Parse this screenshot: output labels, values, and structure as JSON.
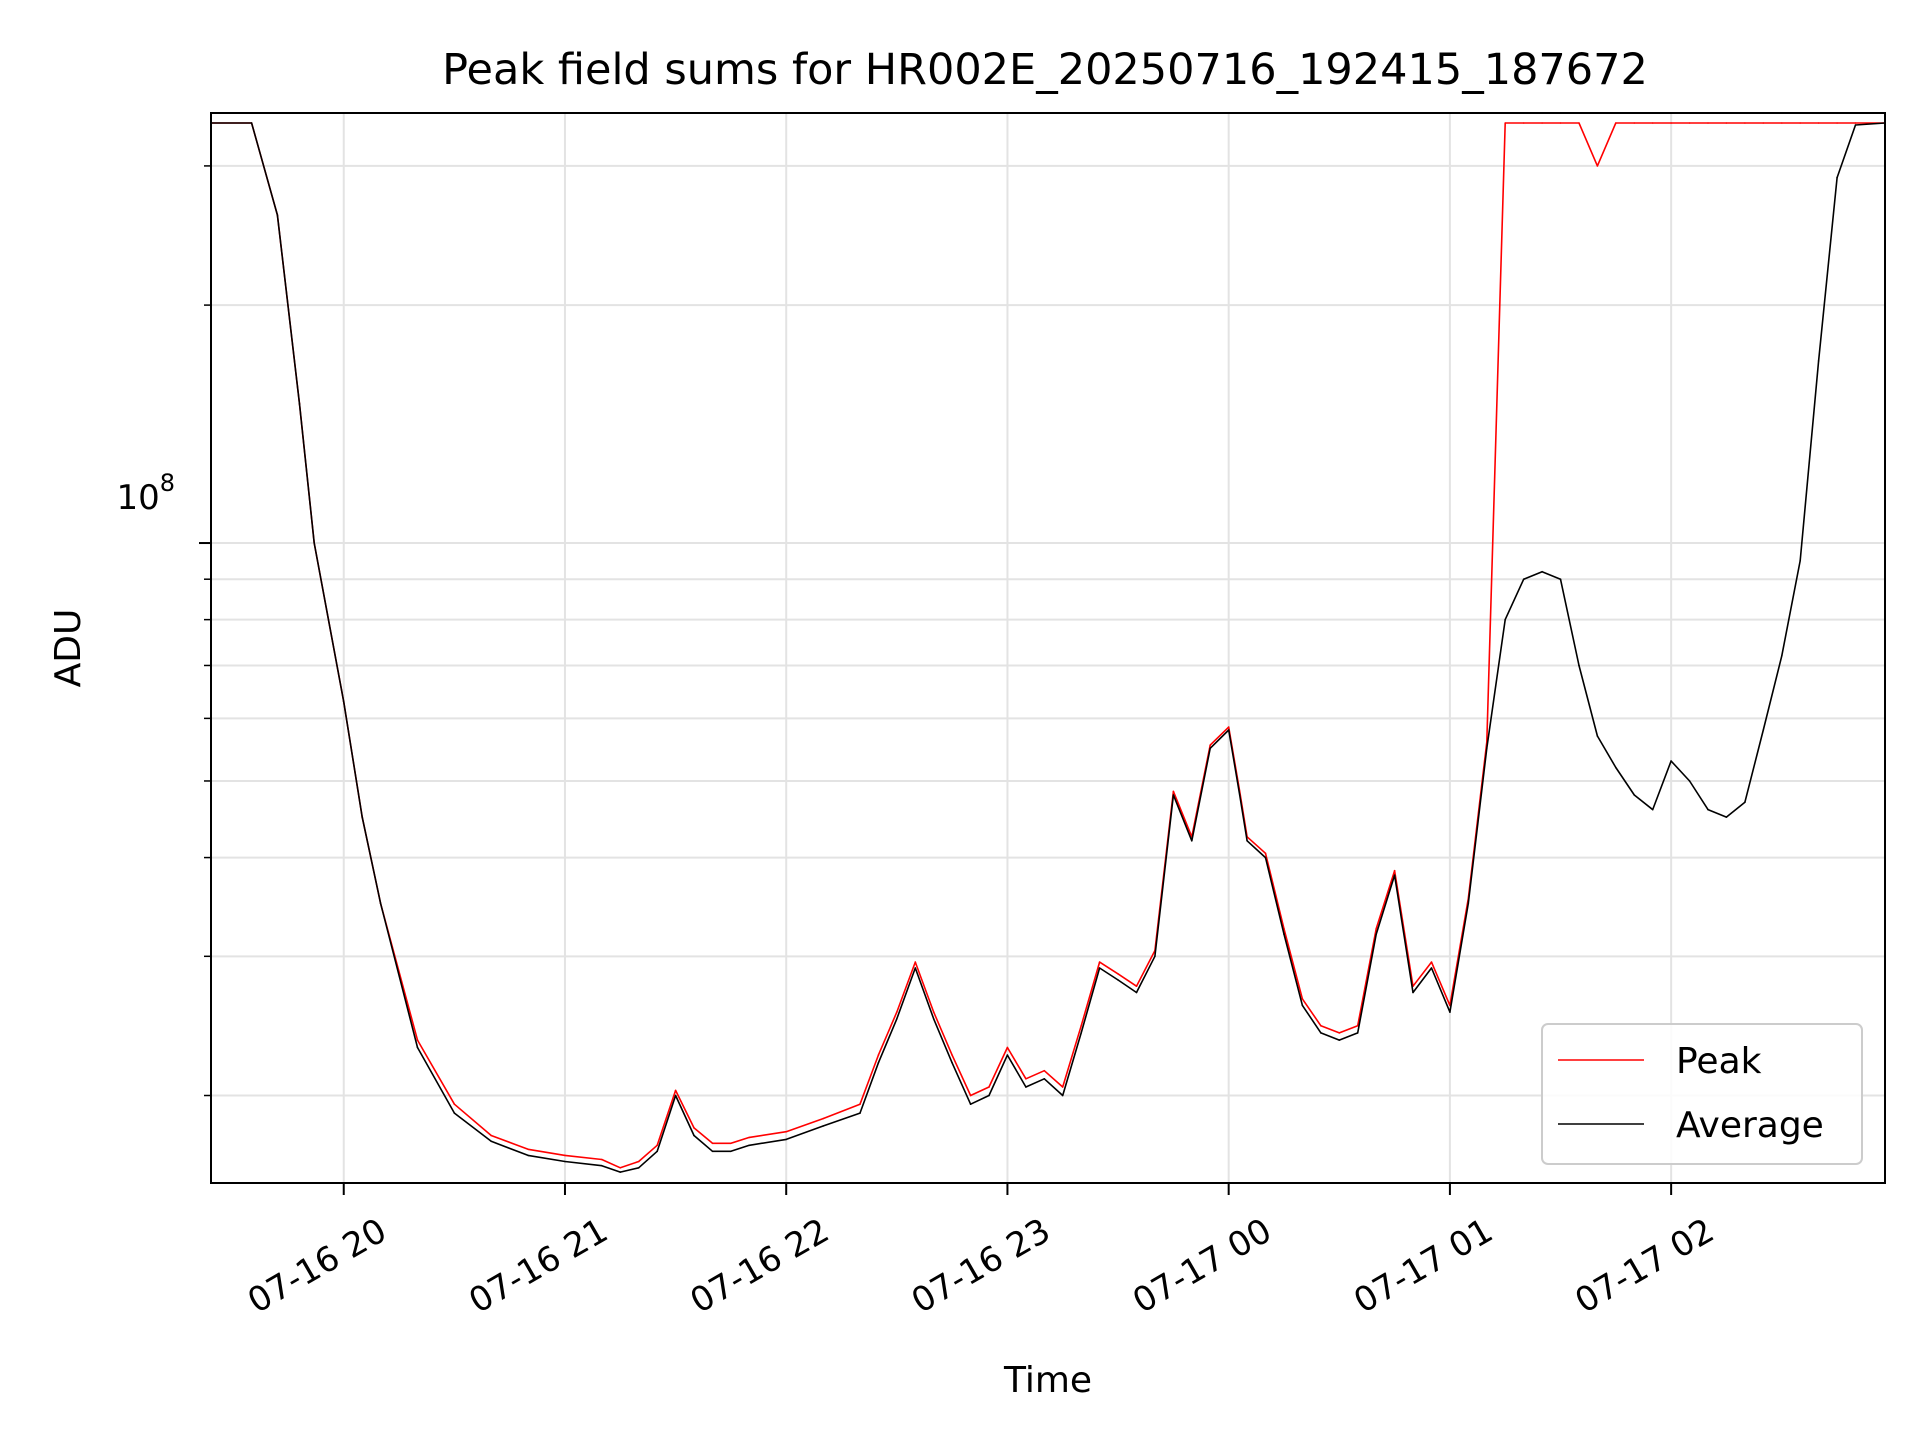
{
  "chart_data": {
    "type": "line",
    "title": "Peak field sums for HR002E_20250716_192415_187672",
    "xlabel": "Time",
    "ylabel": "ADU",
    "y_scale": "log",
    "xlim": [
      "2025-07-16 19:24",
      "2025-07-17 02:58"
    ],
    "ylim": [
      15500000,
      350000000
    ],
    "x_ticks": [
      "2025-07-16 20:00",
      "2025-07-16 21:00",
      "2025-07-16 22:00",
      "2025-07-16 23:00",
      "2025-07-17 00:00",
      "2025-07-17 01:00",
      "2025-07-17 02:00"
    ],
    "x_tick_labels": [
      "07-16 20",
      "07-16 21",
      "07-16 22",
      "07-16 23",
      "07-17 00",
      "07-17 01",
      "07-17 02"
    ],
    "y_tick_label": {
      "base": "10",
      "exponent": "8"
    },
    "y_major_tick": 100000000,
    "y_minor_ticks": [
      20000000,
      30000000,
      40000000,
      50000000,
      60000000,
      70000000,
      80000000,
      90000000,
      200000000,
      300000000
    ],
    "grid": true,
    "legend_position": "lower-right",
    "colors": {
      "Peak": "#ff0000",
      "Average": "#000000"
    },
    "x": [
      "19:24",
      "19:35",
      "19:42",
      "19:48",
      "19:52",
      "20:00",
      "20:05",
      "20:10",
      "20:20",
      "20:30",
      "20:40",
      "20:50",
      "21:00",
      "21:10",
      "21:15",
      "21:20",
      "21:25",
      "21:30",
      "21:35",
      "21:40",
      "21:45",
      "21:50",
      "22:00",
      "22:10",
      "22:20",
      "22:25",
      "22:30",
      "22:35",
      "22:40",
      "22:45",
      "22:50",
      "22:55",
      "23:00",
      "23:05",
      "23:10",
      "23:15",
      "23:20",
      "23:25",
      "23:30",
      "23:35",
      "23:40",
      "23:45",
      "23:50",
      "23:55",
      "00:00",
      "00:03",
      "00:05",
      "00:10",
      "00:15",
      "00:20",
      "00:25",
      "00:30",
      "00:35",
      "00:40",
      "00:45",
      "00:50",
      "00:55",
      "01:00",
      "01:05",
      "01:10",
      "01:15",
      "01:20",
      "01:25",
      "01:30",
      "01:35",
      "01:40",
      "01:45",
      "01:50",
      "01:55",
      "02:00",
      "02:05",
      "02:10",
      "02:15",
      "02:20",
      "02:25",
      "02:30",
      "02:35",
      "02:40",
      "02:45",
      "02:50",
      "02:58"
    ],
    "series": [
      {
        "name": "Average",
        "values": [
          340000000,
          340000000,
          260000000,
          150000000,
          100000000,
          63000000,
          45000000,
          35000000,
          23000000,
          19000000,
          17500000,
          16800000,
          16500000,
          16300000,
          16000000,
          16200000,
          17000000,
          20000000,
          17800000,
          17000000,
          17000000,
          17300000,
          17600000,
          18300000,
          19000000,
          22000000,
          25000000,
          29000000,
          25000000,
          22000000,
          19500000,
          20000000,
          22500000,
          20500000,
          21000000,
          20000000,
          24000000,
          29000000,
          28000000,
          27000000,
          30000000,
          48000000,
          42000000,
          55000000,
          58000000,
          48000000,
          42000000,
          40000000,
          32000000,
          26000000,
          24000000,
          23500000,
          24000000,
          32000000,
          38000000,
          27000000,
          29000000,
          25500000,
          35000000,
          55000000,
          80000000,
          90000000,
          92000000,
          90000000,
          70000000,
          57000000,
          52000000,
          48000000,
          46000000,
          53000000,
          50000000,
          46000000,
          45000000,
          47000000,
          58000000,
          72000000,
          95000000,
          170000000,
          290000000,
          338000000,
          340000000
        ]
      },
      {
        "name": "Peak",
        "values": [
          340000000,
          340000000,
          260000000,
          150000000,
          100000000,
          63000000,
          45000000,
          35000000,
          23500000,
          19500000,
          17800000,
          17100000,
          16800000,
          16600000,
          16200000,
          16500000,
          17300000,
          20300000,
          18200000,
          17400000,
          17400000,
          17700000,
          18000000,
          18700000,
          19500000,
          22500000,
          25500000,
          29500000,
          25500000,
          22500000,
          20000000,
          20500000,
          23000000,
          21000000,
          21500000,
          20500000,
          24500000,
          29500000,
          28500000,
          27500000,
          30500000,
          48500000,
          42500000,
          55500000,
          58500000,
          48500000,
          42500000,
          40500000,
          32500000,
          26500000,
          24500000,
          24000000,
          24500000,
          32500000,
          38500000,
          27500000,
          29500000,
          26000000,
          35500000,
          56000000,
          340000000,
          340000000,
          340000000,
          340000000,
          340000000,
          300000000,
          340000000,
          340000000,
          340000000,
          340000000,
          340000000,
          340000000,
          340000000,
          340000000,
          340000000,
          340000000,
          340000000,
          340000000,
          340000000,
          340000000,
          340000000
        ]
      }
    ]
  },
  "legend": {
    "items": [
      {
        "label": "Peak",
        "color": "#ff0000"
      },
      {
        "label": "Average",
        "color": "#000000"
      }
    ]
  }
}
